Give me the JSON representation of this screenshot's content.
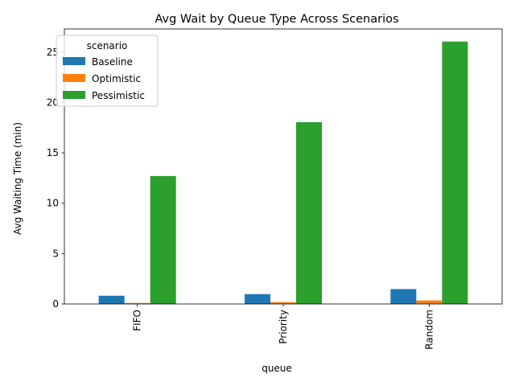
{
  "chart_data": {
    "type": "bar",
    "title": "Avg Wait by Queue Type Across Scenarios",
    "xlabel": "queue",
    "ylabel": "Avg Waiting Time (min)",
    "categories": [
      "FIFO",
      "Priority",
      "Random"
    ],
    "ylim": [
      0,
      27.3
    ],
    "yticks": [
      0,
      5,
      10,
      15,
      20,
      25
    ],
    "legend": {
      "title": "scenario",
      "placement": "top-left"
    },
    "grid": false,
    "series": [
      {
        "name": "Baseline",
        "color": "#1f77b4",
        "values": [
          0.82,
          0.98,
          1.48
        ]
      },
      {
        "name": "Optimistic",
        "color": "#ff7f0e",
        "values": [
          0.1,
          0.18,
          0.35
        ]
      },
      {
        "name": "Pessimistic",
        "color": "#2ca02c",
        "values": [
          12.7,
          18.05,
          26.05
        ]
      }
    ]
  }
}
